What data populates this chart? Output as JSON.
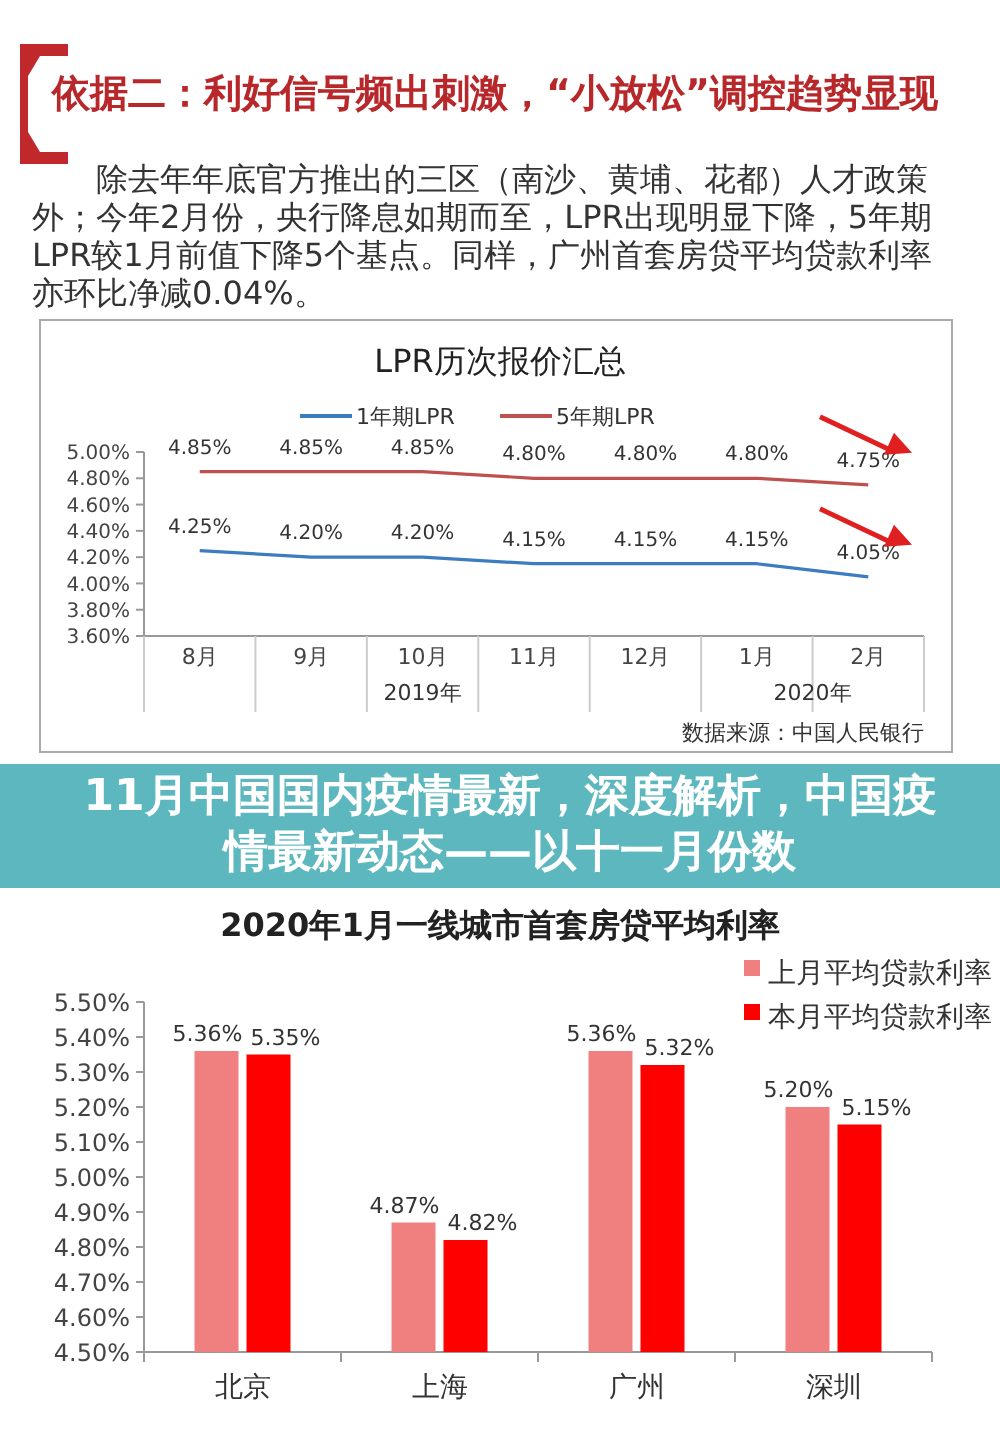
{
  "chart_data": [
    {
      "type": "other",
      "title": "依据二：利好信号频出刺激，“小放松”调控趋势显现",
      "annotations": [
        "除去年年底官方推出的三区（南沙、黄埔、花都）人才政策外；今年2月份，央行降息如期而至，LPR出现明显下降，5年期LPR较1月前值下降5个基点。同样，广州首套房贷平均贷款利率亦环比净减0.04%。"
      ]
    },
    {
      "type": "line",
      "title": "LPR历次报价汇总",
      "categories": [
        "8月",
        "9月",
        "10月",
        "11月",
        "12月",
        "1月",
        "2月"
      ],
      "series": [
        {
          "name": "1年期LPR",
          "color": "#3b7dbf",
          "values": [
            4.25,
            4.2,
            4.2,
            4.15,
            4.15,
            4.15,
            4.05
          ],
          "value_labels": [
            "4.25%",
            "4.20%",
            "4.20%",
            "4.15%",
            "4.15%",
            "4.15%",
            "4.05%"
          ]
        },
        {
          "name": "5年期LPR",
          "color": "#c0504d",
          "values": [
            4.85,
            4.85,
            4.85,
            4.8,
            4.8,
            4.8,
            4.75
          ],
          "value_labels": [
            "4.85%",
            "4.85%",
            "4.85%",
            "4.80%",
            "4.80%",
            "4.80%",
            "4.75%"
          ]
        }
      ],
      "ylim": [
        3.6,
        5.0
      ],
      "yticks": [
        {
          "value": 3.6,
          "label": "3.60%"
        },
        {
          "value": 3.8,
          "label": "3.80%"
        },
        {
          "value": 4.0,
          "label": "4.00%"
        },
        {
          "value": 4.2,
          "label": "4.20%"
        },
        {
          "value": 4.4,
          "label": "4.40%"
        },
        {
          "value": 4.6,
          "label": "4.60%"
        },
        {
          "value": 4.8,
          "label": "4.80%"
        },
        {
          "value": 5.0,
          "label": "5.00%"
        }
      ],
      "legend": "top",
      "annotations": [
        "2019年",
        "2020年",
        "数据来源：中国人民银行"
      ]
    },
    {
      "type": "other",
      "title": "11月中国国内疫情最新，深度解析，中国疫情最新动态——以十一月份数"
    },
    {
      "type": "bar",
      "title": "2020年1月一线城市首套房贷平均利率",
      "categories": [
        "北京",
        "上海",
        "广州",
        "深圳"
      ],
      "series": [
        {
          "name": "上月平均贷款利率",
          "color": "#f08080",
          "values": [
            5.36,
            4.87,
            5.36,
            5.2
          ],
          "value_labels": [
            "5.36%",
            "4.87%",
            "5.36%",
            "5.20%"
          ]
        },
        {
          "name": "本月平均贷款利率",
          "color": "#ff0000",
          "values": [
            5.35,
            4.82,
            5.32,
            5.15
          ],
          "value_labels": [
            "5.35%",
            "4.82%",
            "5.32%",
            "5.15%"
          ]
        }
      ],
      "ylim": [
        4.5,
        5.5
      ],
      "yticks": [
        {
          "value": 4.5,
          "label": "4.50%"
        },
        {
          "value": 4.6,
          "label": "4.60%"
        },
        {
          "value": 4.7,
          "label": "4.70%"
        },
        {
          "value": 4.8,
          "label": "4.80%"
        },
        {
          "value": 4.9,
          "label": "4.90%"
        },
        {
          "value": 5.0,
          "label": "5.00%"
        },
        {
          "value": 5.1,
          "label": "5.10%"
        },
        {
          "value": 5.2,
          "label": "5.20%"
        },
        {
          "value": 5.3,
          "label": "5.30%"
        },
        {
          "value": 5.4,
          "label": "5.40%"
        },
        {
          "value": 5.5,
          "label": "5.50%"
        }
      ],
      "legend": "top right"
    }
  ]
}
